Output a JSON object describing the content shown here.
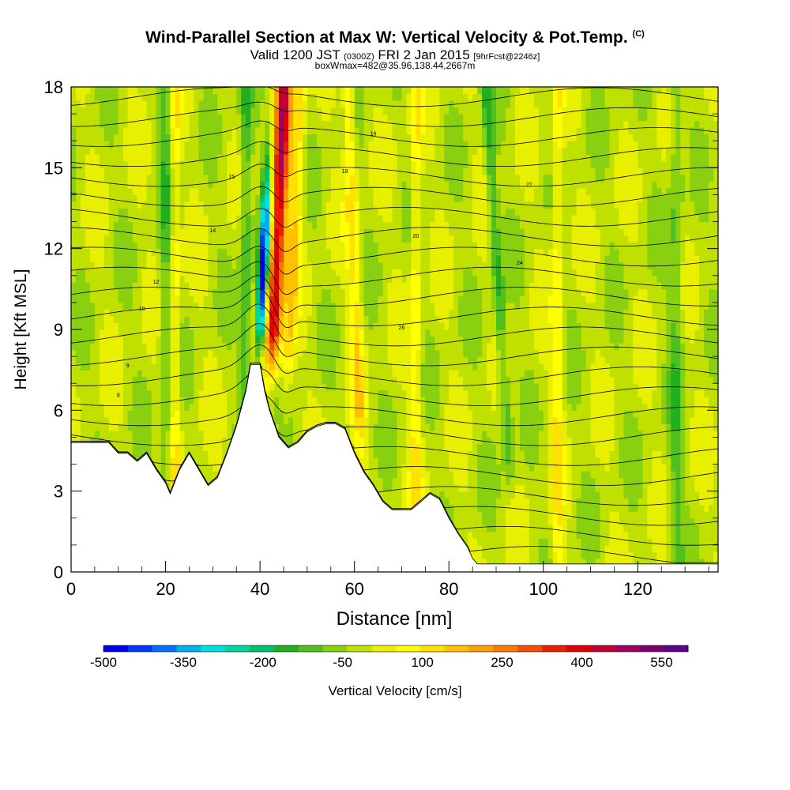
{
  "header": {
    "title_main": "Wind-Parallel Section at Max W: Vertical Velocity & Pot.Temp.",
    "title_mark": "(C)",
    "sub_a": "Valid 1200 JST",
    "sub_b": "(0300Z)",
    "sub_c": "FRI 2 Jan 2015",
    "sub_d": "[9hrFcst@2246z]",
    "sub_line3": "boxWmax=482@35.96,138.44,2667m"
  },
  "chart_data": {
    "type": "heatmap",
    "title": "Wind-Parallel Section at Max W: Vertical Velocity & Pot.Temp.",
    "xlabel": "Distance [nm]",
    "ylabel": "Height [Kft MSL]",
    "xlim": [
      0,
      137
    ],
    "ylim": [
      0,
      18
    ],
    "x_ticks": [
      0,
      20,
      40,
      60,
      80,
      100,
      120
    ],
    "y_ticks": [
      0,
      3,
      6,
      9,
      12,
      15,
      18
    ],
    "grid": false,
    "terrain_kft": [
      [
        0,
        4.8
      ],
      [
        8,
        4.8
      ],
      [
        10,
        4.4
      ],
      [
        12,
        4.4
      ],
      [
        14,
        4.1
      ],
      [
        16,
        4.4
      ],
      [
        18,
        3.8
      ],
      [
        20,
        3.3
      ],
      [
        21,
        2.9
      ],
      [
        23,
        3.8
      ],
      [
        25,
        4.4
      ],
      [
        27,
        3.8
      ],
      [
        29,
        3.2
      ],
      [
        31,
        3.5
      ],
      [
        33,
        4.4
      ],
      [
        35,
        5.4
      ],
      [
        37,
        6.7
      ],
      [
        38,
        7.7
      ],
      [
        40,
        7.7
      ],
      [
        41,
        6.7
      ],
      [
        42,
        6.0
      ],
      [
        44,
        5.0
      ],
      [
        46,
        4.6
      ],
      [
        48,
        4.8
      ],
      [
        50,
        5.2
      ],
      [
        52,
        5.4
      ],
      [
        54,
        5.5
      ],
      [
        56,
        5.5
      ],
      [
        58,
        5.3
      ],
      [
        60,
        4.4
      ],
      [
        62,
        3.7
      ],
      [
        64,
        3.2
      ],
      [
        66,
        2.6
      ],
      [
        68,
        2.3
      ],
      [
        72,
        2.3
      ],
      [
        74,
        2.6
      ],
      [
        76,
        2.9
      ],
      [
        78,
        2.7
      ],
      [
        80,
        2.0
      ],
      [
        82,
        1.4
      ],
      [
        84,
        0.9
      ],
      [
        85,
        0.5
      ],
      [
        86,
        0.3
      ],
      [
        137,
        0.3
      ]
    ],
    "w_peak_cm_s": 482,
    "colorbar": {
      "label": "Vertical Velocity [cm/s]",
      "min": -500,
      "max": 600,
      "step": 50,
      "tick_labels": [
        "-500",
        "-350",
        "-200",
        "-50",
        "100",
        "250",
        "400",
        "550"
      ],
      "colors": [
        "#0000f0",
        "#0038ff",
        "#0070ff",
        "#00b0f0",
        "#00e0e0",
        "#00d4a0",
        "#00c070",
        "#20b020",
        "#50c020",
        "#88d010",
        "#c0e000",
        "#e8f000",
        "#ffff00",
        "#ffe000",
        "#ffc000",
        "#ffa000",
        "#ff7800",
        "#f05000",
        "#e82000",
        "#e00000",
        "#c00030",
        "#a00060",
        "#800070",
        "#600090"
      ]
    },
    "contour_labels": [
      "8",
      "9",
      "10",
      "12",
      "14",
      "15",
      "16",
      "18",
      "20",
      "22",
      "24",
      "26"
    ]
  }
}
